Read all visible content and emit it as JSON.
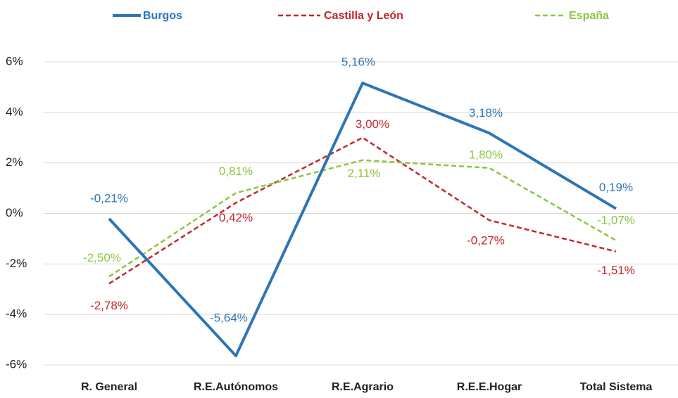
{
  "chart_data": {
    "type": "line",
    "categories": [
      "R. General",
      "R.E.Autónomos",
      "R.E.Agrario",
      "R.E.E.Hogar",
      "Total Sistema"
    ],
    "series": [
      {
        "name": "Burgos",
        "color": "#2e75b6",
        "dash": false,
        "values": [
          -0.21,
          -5.64,
          5.16,
          3.18,
          0.19
        ],
        "value_labels": [
          "-0,21%",
          "-5,64%",
          "5,16%",
          "3,18%",
          "0,19%"
        ]
      },
      {
        "name": "Castilla y León",
        "color": "#c0272d",
        "dash": true,
        "values": [
          -2.78,
          0.42,
          3.0,
          -0.27,
          -1.51
        ],
        "value_labels": [
          "-2,78%",
          "0,42%",
          "3,00%",
          "-0,27%",
          "-1,51%"
        ]
      },
      {
        "name": "España",
        "color": "#8cc63f",
        "dash": true,
        "values": [
          -2.5,
          0.81,
          2.11,
          1.8,
          -1.07
        ],
        "value_labels": [
          "-2,50%",
          "0,81%",
          "2,11%",
          "1,80%",
          "-1,07%"
        ]
      }
    ],
    "ylim": [
      -6,
      6
    ],
    "yticks": [
      {
        "value": -6,
        "label": "-6%"
      },
      {
        "value": -4,
        "label": "-4%"
      },
      {
        "value": -2,
        "label": "-2%"
      },
      {
        "value": 0,
        "label": "0%"
      },
      {
        "value": 2,
        "label": "2%"
      },
      {
        "value": 4,
        "label": "4%"
      },
      {
        "value": 6,
        "label": "6%"
      }
    ],
    "grid": true,
    "legend": "top"
  }
}
